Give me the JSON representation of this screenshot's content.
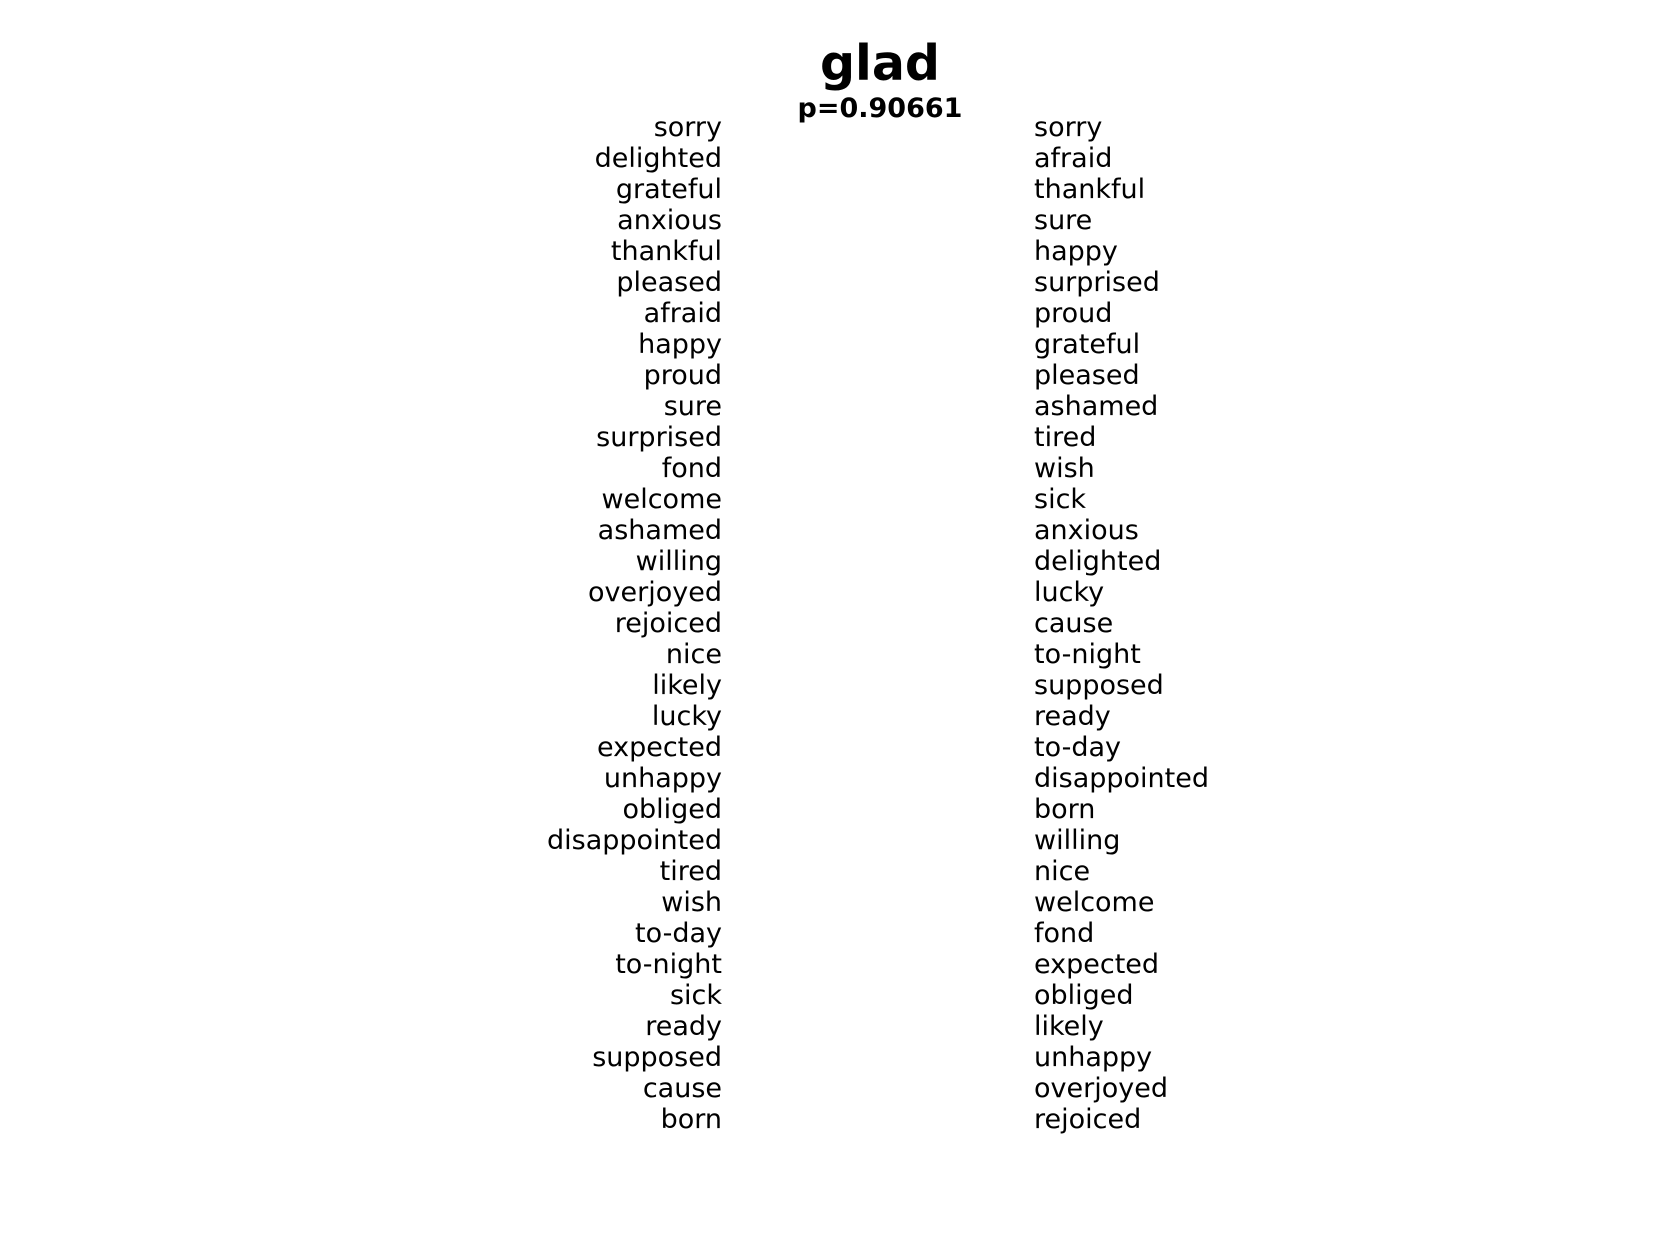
{
  "title": "glad",
  "subtitle": "p=0.90661",
  "left_words": [
    "sorry",
    "delighted",
    "grateful",
    "anxious",
    "thankful",
    "pleased",
    "afraid",
    "happy",
    "proud",
    "sure",
    "surprised",
    "fond",
    "welcome",
    "ashamed",
    "willing",
    "overjoyed",
    "rejoiced",
    "nice",
    "likely",
    "lucky",
    "expected",
    "unhappy",
    "obliged",
    "disappointed",
    "tired",
    "wish",
    "to-day",
    "to-night",
    "sick",
    "ready",
    "supposed",
    "cause",
    "born"
  ],
  "right_words": [
    "sorry",
    "afraid",
    "thankful",
    "sure",
    "happy",
    "surprised",
    "proud",
    "grateful",
    "pleased",
    "ashamed",
    "tired",
    "wish",
    "sick",
    "anxious",
    "delighted",
    "lucky",
    "cause",
    "to-night",
    "supposed",
    "ready",
    "to-day",
    "disappointed",
    "born",
    "willing",
    "nice",
    "welcome",
    "fond",
    "expected",
    "obliged",
    "likely",
    "unhappy",
    "overjoyed",
    "rejoiced"
  ]
}
